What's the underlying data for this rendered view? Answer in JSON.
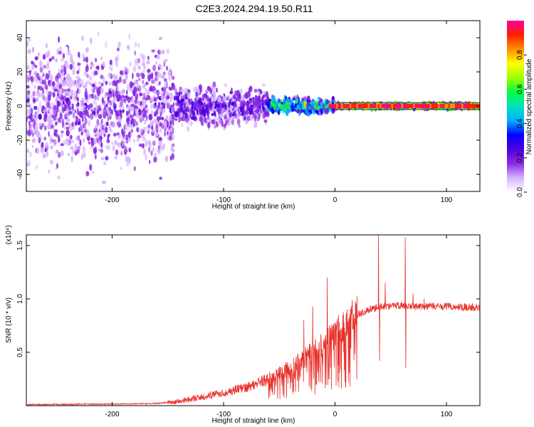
{
  "title": "C2E3.2024.294.19.50.R11",
  "colors": {
    "snr_line": "#e8302a",
    "band_line": "#0a7a2a",
    "frame": "#000000",
    "colormap": [
      "#ffffff",
      "#d6b4ff",
      "#8a2be2",
      "#5000e0",
      "#0000ff",
      "#00b0ff",
      "#00e0c0",
      "#00ff40",
      "#a0ff00",
      "#ffff00",
      "#ff9000",
      "#ff2000",
      "#ff00a0"
    ]
  },
  "chart_data": [
    {
      "type": "heatmap",
      "title": "C2E3.2024.294.19.50.R11",
      "xlabel": "Height of straight line (km)",
      "ylabel": "Frequency (Hz)",
      "xlim": [
        -277,
        130
      ],
      "ylim": [
        -50,
        50
      ],
      "x_ticks": [
        -200,
        -100,
        0,
        100
      ],
      "y_ticks": [
        -40,
        -20,
        0,
        20,
        40
      ],
      "colorbar": {
        "label": "Normalized spectral amplitude",
        "range": [
          0.0,
          1.0
        ],
        "ticks": [
          0.0,
          0.2,
          0.4,
          0.6,
          0.8
        ]
      },
      "signal_band_hz": [
        -2,
        2
      ],
      "regions": [
        {
          "x_range": [
            -277,
            -145
          ],
          "description_level": 0.15,
          "freq_spread_hz": 50
        },
        {
          "x_range": [
            -145,
            -60
          ],
          "description_level": 0.2,
          "freq_spread_hz": 15
        },
        {
          "x_range": [
            -60,
            0
          ],
          "description_level": 0.45,
          "freq_spread_hz": 6
        },
        {
          "x_range": [
            0,
            130
          ],
          "description_level": 0.9,
          "freq_spread_hz": 2
        }
      ],
      "grid": false
    },
    {
      "type": "line",
      "xlabel": "Height of straight line (km)",
      "ylabel": "SNR (10 * v/v)",
      "y_multiplier": "(x10⁴)",
      "xlim": [
        -277,
        130
      ],
      "ylim": [
        0,
        1.6
      ],
      "x_ticks": [
        -200,
        -100,
        0,
        100
      ],
      "y_ticks": [
        0.5,
        1.0,
        1.5
      ],
      "grid": false,
      "series": [
        {
          "envelope_x": [
            -277,
            -200,
            -160,
            -140,
            -120,
            -100,
            -80,
            -60,
            -40,
            -20,
            -10,
            0,
            10,
            20,
            30,
            38,
            40,
            45,
            60,
            62,
            70,
            80,
            100,
            130
          ],
          "envelope_y": [
            0.01,
            0.015,
            0.02,
            0.04,
            0.08,
            0.12,
            0.17,
            0.25,
            0.35,
            0.5,
            0.58,
            0.66,
            0.78,
            0.85,
            0.9,
            0.92,
            0.93,
            0.93,
            0.94,
            0.94,
            0.93,
            0.93,
            0.93,
            0.92
          ],
          "spikes": [
            {
              "x": -28,
              "y": 0.8
            },
            {
              "x": -20,
              "y": 0.93
            },
            {
              "x": -7,
              "y": 1.2
            },
            {
              "x": 39,
              "y": 1.62
            },
            {
              "x": 40,
              "y": 0.42
            },
            {
              "x": 45,
              "y": 1.15
            },
            {
              "x": 63,
              "y": 1.58
            },
            {
              "x": 63.5,
              "y": 0.35
            },
            {
              "x": 70,
              "y": 1.05
            },
            {
              "x": 80,
              "y": 1.0
            }
          ]
        }
      ]
    }
  ]
}
